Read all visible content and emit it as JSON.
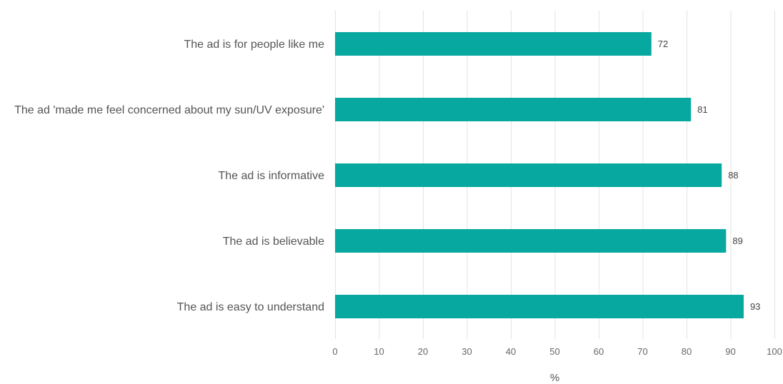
{
  "chart_data": {
    "type": "bar",
    "orientation": "horizontal",
    "categories": [
      "The ad is for people like me",
      "The ad 'made me feel concerned about my sun/UV exposure'",
      "The ad is informative",
      "The ad is believable",
      "The ad is easy to understand"
    ],
    "values": [
      72,
      81,
      88,
      89,
      93
    ],
    "xlabel": "%",
    "ylabel": "",
    "xlim": [
      0,
      100
    ],
    "xticks": [
      0,
      10,
      20,
      30,
      40,
      50,
      60,
      70,
      80,
      90,
      100
    ],
    "grid": "vertical",
    "data_labels": true,
    "bar_color": "#07a89f"
  }
}
